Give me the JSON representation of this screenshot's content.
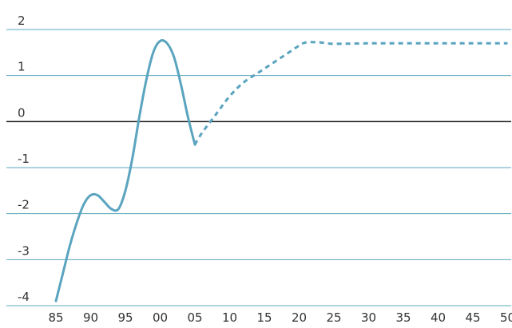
{
  "chart_data": {
    "type": "line",
    "title": "",
    "xlabel": "",
    "ylabel": "",
    "ylim": [
      -4,
      2
    ],
    "grid": true,
    "legend": "none",
    "y_ticks": [
      2,
      1,
      0,
      -1,
      -2,
      -3,
      -4
    ],
    "y_tick_labels": [
      "2",
      "1",
      "0",
      "-1",
      "-2",
      "-3",
      "-4"
    ],
    "x_ticks": [
      1985,
      1990,
      1995,
      2000,
      2005,
      2010,
      2015,
      2020,
      2025,
      2030,
      2035,
      2040,
      2045,
      2050
    ],
    "x_tick_labels": [
      "85",
      "90",
      "95",
      "00",
      "05",
      "10",
      "15",
      "20",
      "25",
      "30",
      "35",
      "40",
      "45",
      "50"
    ],
    "colors": {
      "series": "#5aa4bf",
      "grid": "#5aa7bd",
      "zero_line": "#1a1a1a"
    },
    "series": [
      {
        "style": "solid",
        "x": [
          1985,
          1986,
          1987,
          1988,
          1989,
          1990,
          1991,
          1992,
          1993,
          1994,
          1995,
          1996,
          1997,
          1998,
          1999,
          2000,
          2001,
          2002,
          2003,
          2004,
          2005
        ],
        "y": [
          -3.9,
          -3.3,
          -2.7,
          -2.2,
          -1.8,
          -1.6,
          -1.6,
          -1.75,
          -1.9,
          -1.9,
          -1.5,
          -0.8,
          0.1,
          0.9,
          1.5,
          1.75,
          1.7,
          1.4,
          0.8,
          0.1,
          -0.5
        ]
      },
      {
        "style": "dashed",
        "x": [
          2005,
          2006,
          2008,
          2010,
          2012,
          2014,
          2016,
          2018,
          2020,
          2021,
          2023,
          2025,
          2030,
          2035,
          2040,
          2045,
          2050
        ],
        "y": [
          -0.5,
          -0.25,
          0.15,
          0.55,
          0.85,
          1.05,
          1.25,
          1.45,
          1.65,
          1.72,
          1.72,
          1.69,
          1.7,
          1.7,
          1.7,
          1.7,
          1.7
        ]
      }
    ]
  }
}
